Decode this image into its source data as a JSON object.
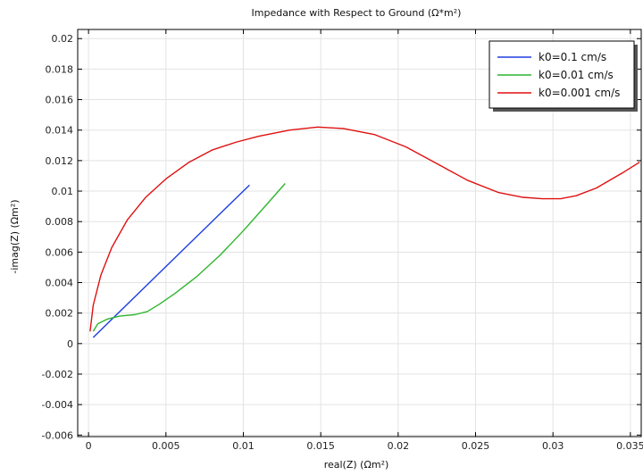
{
  "chart_data": {
    "type": "line",
    "title": "Impedance with Respect to Ground (Ω*m²)",
    "xlabel": "real(Z) (Ωm²)",
    "ylabel": "-imag(Z) (Ωm²)",
    "xlim": [
      -0.0007,
      0.0357
    ],
    "ylim": [
      -0.0061,
      0.0206
    ],
    "xticks": [
      0,
      0.005,
      0.01,
      0.015,
      0.02,
      0.025,
      0.03,
      0.035
    ],
    "xtick_labels": [
      "0",
      "0.005",
      "0.01",
      "0.015",
      "0.02",
      "0.025",
      "0.03",
      "0.035"
    ],
    "yticks": [
      -0.006,
      -0.004,
      -0.002,
      0,
      0.002,
      0.004,
      0.006,
      0.008,
      0.01,
      0.012,
      0.014,
      0.016,
      0.018,
      0.02
    ],
    "ytick_labels": [
      "-0.006",
      "-0.004",
      "-0.002",
      "0",
      "0.002",
      "0.004",
      "0.006",
      "0.008",
      "0.01",
      "0.012",
      "0.014",
      "0.016",
      "0.018",
      "0.02"
    ],
    "grid": true,
    "legend_position": "top-right",
    "series": [
      {
        "name": "k0=0.1 cm/s",
        "color": "#1f3fe0",
        "x": [
          0.0003,
          0.0104
        ],
        "y": [
          0.0004,
          0.0104
        ]
      },
      {
        "name": "k0=0.01 cm/s",
        "color": "#2fb52f",
        "x": [
          0.0003,
          0.0006,
          0.0012,
          0.002,
          0.003,
          0.0038,
          0.0046,
          0.0056,
          0.007,
          0.0085,
          0.01,
          0.0114,
          0.0127
        ],
        "y": [
          0.0008,
          0.0013,
          0.0016,
          0.0018,
          0.0019,
          0.0021,
          0.0026,
          0.0033,
          0.0044,
          0.0058,
          0.0074,
          0.009,
          0.0105
        ]
      },
      {
        "name": "k0=0.001 cm/s",
        "color": "#e01010",
        "x": [
          0.0001,
          0.0003,
          0.0008,
          0.0015,
          0.0025,
          0.0037,
          0.005,
          0.0065,
          0.008,
          0.0095,
          0.011,
          0.013,
          0.0148,
          0.0165,
          0.0185,
          0.0205,
          0.0225,
          0.0245,
          0.0265,
          0.028,
          0.0293,
          0.0305,
          0.0315,
          0.0328,
          0.0345,
          0.0356
        ],
        "y": [
          0.0008,
          0.0025,
          0.0045,
          0.0063,
          0.0081,
          0.0096,
          0.0108,
          0.0119,
          0.0127,
          0.0132,
          0.0136,
          0.014,
          0.0142,
          0.0141,
          0.0137,
          0.0129,
          0.0118,
          0.0107,
          0.0099,
          0.0096,
          0.0095,
          0.0095,
          0.0097,
          0.0102,
          0.0112,
          0.0119
        ]
      }
    ]
  }
}
